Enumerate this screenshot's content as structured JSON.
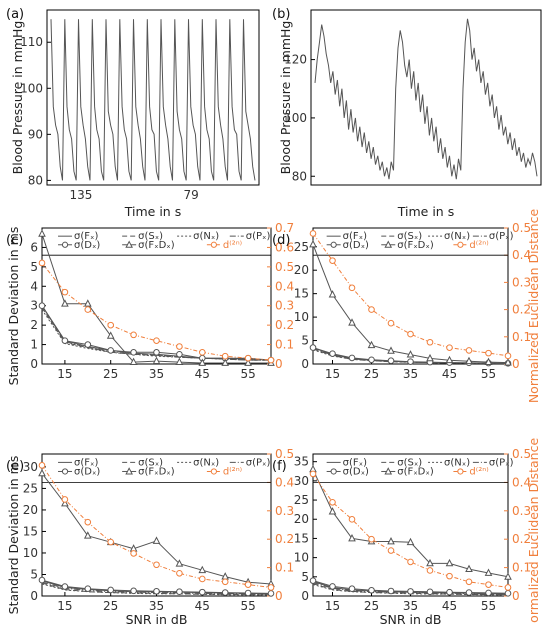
{
  "colors": {
    "gray": "#555555",
    "orange": "#f07f3c",
    "axis": "#000000"
  },
  "panels_top": [
    {
      "label": "(a)",
      "xlabel": "Time in s",
      "ylabel": "Blood Pressure in mmHg",
      "yticks": [
        80,
        90,
        100,
        110
      ],
      "ylim": [
        79,
        117
      ],
      "xtick_labels": [
        "135",
        "79"
      ],
      "chart_data": {
        "type": "line",
        "title": "",
        "xlabel": "Time in s",
        "ylabel": "Blood Pressure in mmHg",
        "ylim": [
          79,
          117
        ],
        "series": [
          {
            "values": [
              115,
              96,
              92,
              90,
              83,
              80,
              115,
              96,
              91,
              89,
              82,
              80,
              115,
              96,
              92,
              89,
              83,
              80,
              115,
              96,
              91,
              89,
              82,
              80,
              115,
              95,
              92,
              90,
              83,
              80,
              115,
              96,
              91,
              89,
              82,
              80,
              115,
              96,
              92,
              89,
              83,
              80,
              115,
              96,
              91,
              90,
              82,
              80,
              115,
              96,
              92,
              89,
              83,
              80,
              115,
              95,
              91,
              89,
              82,
              80,
              115,
              96,
              92,
              90,
              83,
              80,
              115,
              96,
              91,
              89,
              82,
              80,
              115,
              96,
              92,
              89,
              83,
              80,
              115,
              96,
              91,
              90,
              82,
              80,
              115,
              95,
              92,
              89,
              83,
              80
            ]
          }
        ]
      }
    },
    {
      "label": "(b)",
      "xlabel": "Time in s",
      "ylabel": "Blood Pressure in mmHg",
      "yticks": [
        80,
        100,
        120
      ],
      "ylim": [
        77,
        137
      ],
      "xtick_labels": [],
      "chart_data": {
        "type": "line",
        "title": "",
        "xlabel": "Time in s",
        "ylabel": "Blood Pressure in mmHg",
        "ylim": [
          77,
          137
        ],
        "series": [
          {
            "values": [
              112,
              120,
              126,
              132,
              128,
              122,
              118,
              112,
              116,
              108,
              113,
              104,
              110,
              100,
              106,
              96,
              103,
              95,
              100,
              92,
              97,
              90,
              95,
              88,
              92,
              86,
              90,
              84,
              87,
              82,
              85,
              80,
              83,
              79,
              85,
              82,
              110,
              124,
              130,
              126,
              118,
              114,
              120,
              110,
              116,
              106,
              112,
              102,
              108,
              98,
              104,
              94,
              100,
              92,
              97,
              88,
              93,
              86,
              90,
              83,
              87,
              80,
              84,
              79,
              86,
              82,
              110,
              126,
              134,
              130,
              120,
              124,
              116,
              120,
              112,
              116,
              108,
              112,
              104,
              108,
              100,
              104,
              96,
              101,
              94,
              97,
              91,
              95,
              89,
              93,
              87,
              90,
              85,
              88,
              83,
              86,
              84,
              88,
              85,
              80
            ]
          }
        ]
      }
    }
  ],
  "panels_bottom": [
    {
      "label": "(c)",
      "left_ticks": [
        "0",
        "1",
        "2",
        "3",
        "4",
        "5",
        "6"
      ],
      "right_ticks": [
        "0",
        "0.1",
        "0.2",
        "0.3",
        "0.4",
        "0.5",
        "0.6",
        "0.7"
      ],
      "x_ticks": [
        "15",
        "25",
        "35",
        "45",
        "55"
      ],
      "left_label": "Standard Deviation in ms",
      "right_label": "",
      "xlabel": "",
      "chart_data": {
        "type": "line",
        "x": [
          10,
          15,
          20,
          25,
          30,
          35,
          40,
          45,
          50,
          55,
          60
        ],
        "ylim_left": [
          0,
          7
        ],
        "ylim_right": [
          0,
          0.7
        ],
        "series": [
          {
            "name": "σ(Fₓ)",
            "axis": "left",
            "values": [
              3.0,
              1.2,
              0.9,
              0.7,
              0.55,
              0.5,
              0.4,
              0.3,
              0.3,
              0.25,
              0.2
            ]
          },
          {
            "name": "σ(Sₓ)",
            "axis": "left",
            "values": [
              2.9,
              1.1,
              0.85,
              0.6,
              0.5,
              0.45,
              0.35,
              0.3,
              0.25,
              0.2,
              0.2
            ]
          },
          {
            "name": "σ(Nₓ)",
            "axis": "left",
            "values": [
              2.8,
              1.05,
              0.8,
              0.6,
              0.5,
              0.4,
              0.35,
              0.3,
              0.25,
              0.2,
              0.2
            ]
          },
          {
            "name": "σ(Pₓ)",
            "axis": "left",
            "values": [
              3.0,
              1.15,
              0.85,
              0.65,
              0.5,
              0.45,
              0.35,
              0.3,
              0.25,
              0.2,
              0.2
            ]
          },
          {
            "name": "σ(Dₓ)",
            "axis": "left",
            "values": [
              3.0,
              1.2,
              1.0,
              0.7,
              0.6,
              0.6,
              0.5,
              0.3,
              0.3,
              0.3,
              0.2
            ]
          },
          {
            "name": "σ(FₓDₓ)",
            "axis": "left",
            "values": [
              6.7,
              3.1,
              3.1,
              1.45,
              0.1,
              0.15,
              0.1,
              0.05,
              0.05,
              0.05,
              0.05
            ]
          },
          {
            "name": "d⁽²ⁿ⁾",
            "axis": "right",
            "values": [
              0.52,
              0.37,
              0.28,
              0.2,
              0.15,
              0.12,
              0.09,
              0.06,
              0.04,
              0.03,
              0.02
            ]
          }
        ]
      }
    },
    {
      "label": "(d)",
      "left_ticks": [
        "0",
        "5",
        "10",
        "15",
        "20",
        "25"
      ],
      "right_ticks": [
        "0",
        "0.1",
        "0.2",
        "0.3",
        "0.4",
        "0.5"
      ],
      "x_ticks": [
        "15",
        "25",
        "35",
        "45",
        "55"
      ],
      "left_label": "",
      "right_label": "Normalized Euclidean Distance",
      "xlabel": "",
      "chart_data": {
        "type": "line",
        "x": [
          10,
          15,
          20,
          25,
          30,
          35,
          40,
          45,
          50,
          55,
          60
        ],
        "ylim_left": [
          0,
          29
        ],
        "ylim_right": [
          0,
          0.5
        ],
        "series": [
          {
            "name": "σ(Fₓ)",
            "axis": "left",
            "values": [
              3.5,
              2.0,
              1.2,
              0.8,
              0.6,
              0.4,
              0.3,
              0.25,
              0.2,
              0.15,
              0.1
            ]
          },
          {
            "name": "σ(Sₓ)",
            "axis": "left",
            "values": [
              3.2,
              1.8,
              1.0,
              0.7,
              0.5,
              0.4,
              0.3,
              0.2,
              0.2,
              0.15,
              0.1
            ]
          },
          {
            "name": "σ(Nₓ)",
            "axis": "left",
            "values": [
              3.0,
              1.7,
              1.0,
              0.7,
              0.5,
              0.35,
              0.3,
              0.2,
              0.15,
              0.1,
              0.1
            ]
          },
          {
            "name": "σ(Pₓ)",
            "axis": "left",
            "values": [
              3.3,
              1.9,
              1.1,
              0.75,
              0.55,
              0.4,
              0.3,
              0.25,
              0.2,
              0.15,
              0.1
            ]
          },
          {
            "name": "σ(Dₓ)",
            "axis": "left",
            "values": [
              3.5,
              2.2,
              1.3,
              0.9,
              0.7,
              0.5,
              0.4,
              0.3,
              0.25,
              0.2,
              0.15
            ]
          },
          {
            "name": "σ(FₓDₓ)",
            "axis": "left",
            "values": [
              25.5,
              14.8,
              8.8,
              4.0,
              2.8,
              2.0,
              1.2,
              0.8,
              0.6,
              0.4,
              0.3
            ]
          },
          {
            "name": "d⁽²ⁿ⁾",
            "axis": "right",
            "values": [
              0.48,
              0.38,
              0.28,
              0.2,
              0.15,
              0.11,
              0.08,
              0.06,
              0.05,
              0.04,
              0.03
            ]
          }
        ]
      }
    },
    {
      "label": "(e)",
      "left_ticks": [
        "0",
        "5",
        "10",
        "15",
        "20",
        "25",
        "30"
      ],
      "right_ticks": [
        "0",
        "0.1",
        "0.2",
        "0.3",
        "0.4",
        "0.5"
      ],
      "x_ticks": [
        "15",
        "25",
        "35",
        "45",
        "55"
      ],
      "left_label": "Standard Deviation in ms",
      "right_label": "",
      "xlabel": "SNR in dB",
      "chart_data": {
        "type": "line",
        "x": [
          10,
          15,
          20,
          25,
          30,
          35,
          40,
          45,
          50,
          55,
          60
        ],
        "ylim_left": [
          0,
          33
        ],
        "ylim_right": [
          0,
          0.5
        ],
        "series": [
          {
            "name": "σ(Fₓ)",
            "axis": "left",
            "values": [
              3.5,
              2.0,
              1.5,
              1.2,
              1.0,
              1.0,
              0.9,
              0.8,
              0.7,
              0.6,
              0.5
            ]
          },
          {
            "name": "σ(Sₓ)",
            "axis": "left",
            "values": [
              3.0,
              1.5,
              1.0,
              0.8,
              0.7,
              0.6,
              0.5,
              0.4,
              0.4,
              0.3,
              0.3
            ]
          },
          {
            "name": "σ(Nₓ)",
            "axis": "left",
            "values": [
              2.8,
              1.4,
              1.0,
              0.8,
              0.6,
              0.5,
              0.5,
              0.4,
              0.3,
              0.3,
              0.3
            ]
          },
          {
            "name": "σ(Pₓ)",
            "axis": "left",
            "values": [
              3.2,
              1.8,
              1.3,
              1.0,
              0.9,
              0.8,
              0.7,
              0.6,
              0.5,
              0.5,
              0.4
            ]
          },
          {
            "name": "σ(Dₓ)",
            "axis": "left",
            "values": [
              3.7,
              2.2,
              1.7,
              1.4,
              1.2,
              1.1,
              1.0,
              0.9,
              0.8,
              0.7,
              0.6
            ]
          },
          {
            "name": "σ(FₓDₓ)",
            "axis": "left",
            "values": [
              28.5,
              21.5,
              14.0,
              12.5,
              11.0,
              12.8,
              7.5,
              6.0,
              4.5,
              3.2,
              2.8
            ]
          },
          {
            "name": "d⁽²ⁿ⁾",
            "axis": "right",
            "values": [
              0.46,
              0.34,
              0.26,
              0.19,
              0.15,
              0.11,
              0.08,
              0.06,
              0.05,
              0.04,
              0.03
            ]
          }
        ]
      }
    },
    {
      "label": "(f)",
      "left_ticks": [
        "0",
        "5",
        "10",
        "15",
        "20",
        "25",
        "30",
        "35"
      ],
      "right_ticks": [
        "0",
        "0.1",
        "0.2",
        "0.3",
        "0.4",
        "0.5"
      ],
      "x_ticks": [
        "15",
        "25",
        "35",
        "45",
        "55"
      ],
      "left_label": "",
      "right_label": "Normalized Euclidean Distance",
      "xlabel": "SNR in dB",
      "chart_data": {
        "type": "line",
        "x": [
          10,
          15,
          20,
          25,
          30,
          35,
          40,
          45,
          50,
          55,
          60
        ],
        "ylim_left": [
          0,
          37
        ],
        "ylim_right": [
          0,
          0.5
        ],
        "series": [
          {
            "name": "σ(Fₓ)",
            "axis": "left",
            "values": [
              3.8,
              2.2,
              1.6,
              1.3,
              1.1,
              1.0,
              0.9,
              0.8,
              0.7,
              0.6,
              0.5
            ]
          },
          {
            "name": "σ(Sₓ)",
            "axis": "left",
            "values": [
              3.2,
              1.7,
              1.2,
              0.9,
              0.8,
              0.7,
              0.6,
              0.5,
              0.4,
              0.4,
              0.3
            ]
          },
          {
            "name": "σ(Nₓ)",
            "axis": "left",
            "values": [
              3.0,
              1.6,
              1.1,
              0.9,
              0.7,
              0.6,
              0.5,
              0.5,
              0.4,
              0.3,
              0.3
            ]
          },
          {
            "name": "σ(Pₓ)",
            "axis": "left",
            "values": [
              3.5,
              2.0,
              1.4,
              1.1,
              1.0,
              0.9,
              0.8,
              0.7,
              0.6,
              0.5,
              0.4
            ]
          },
          {
            "name": "σ(Dₓ)",
            "axis": "left",
            "values": [
              4.0,
              2.5,
              1.9,
              1.5,
              1.3,
              1.2,
              1.1,
              1.0,
              0.9,
              0.8,
              0.7
            ]
          },
          {
            "name": "σ(FₓDₓ)",
            "axis": "left",
            "values": [
              33.0,
              22.0,
              15.0,
              14.2,
              14.2,
              14.0,
              8.5,
              8.5,
              7.0,
              6.0,
              5.0
            ]
          },
          {
            "name": "d⁽²ⁿ⁾",
            "axis": "right",
            "values": [
              0.43,
              0.33,
              0.27,
              0.2,
              0.16,
              0.12,
              0.09,
              0.07,
              0.05,
              0.04,
              0.03
            ]
          }
        ]
      }
    }
  ]
}
